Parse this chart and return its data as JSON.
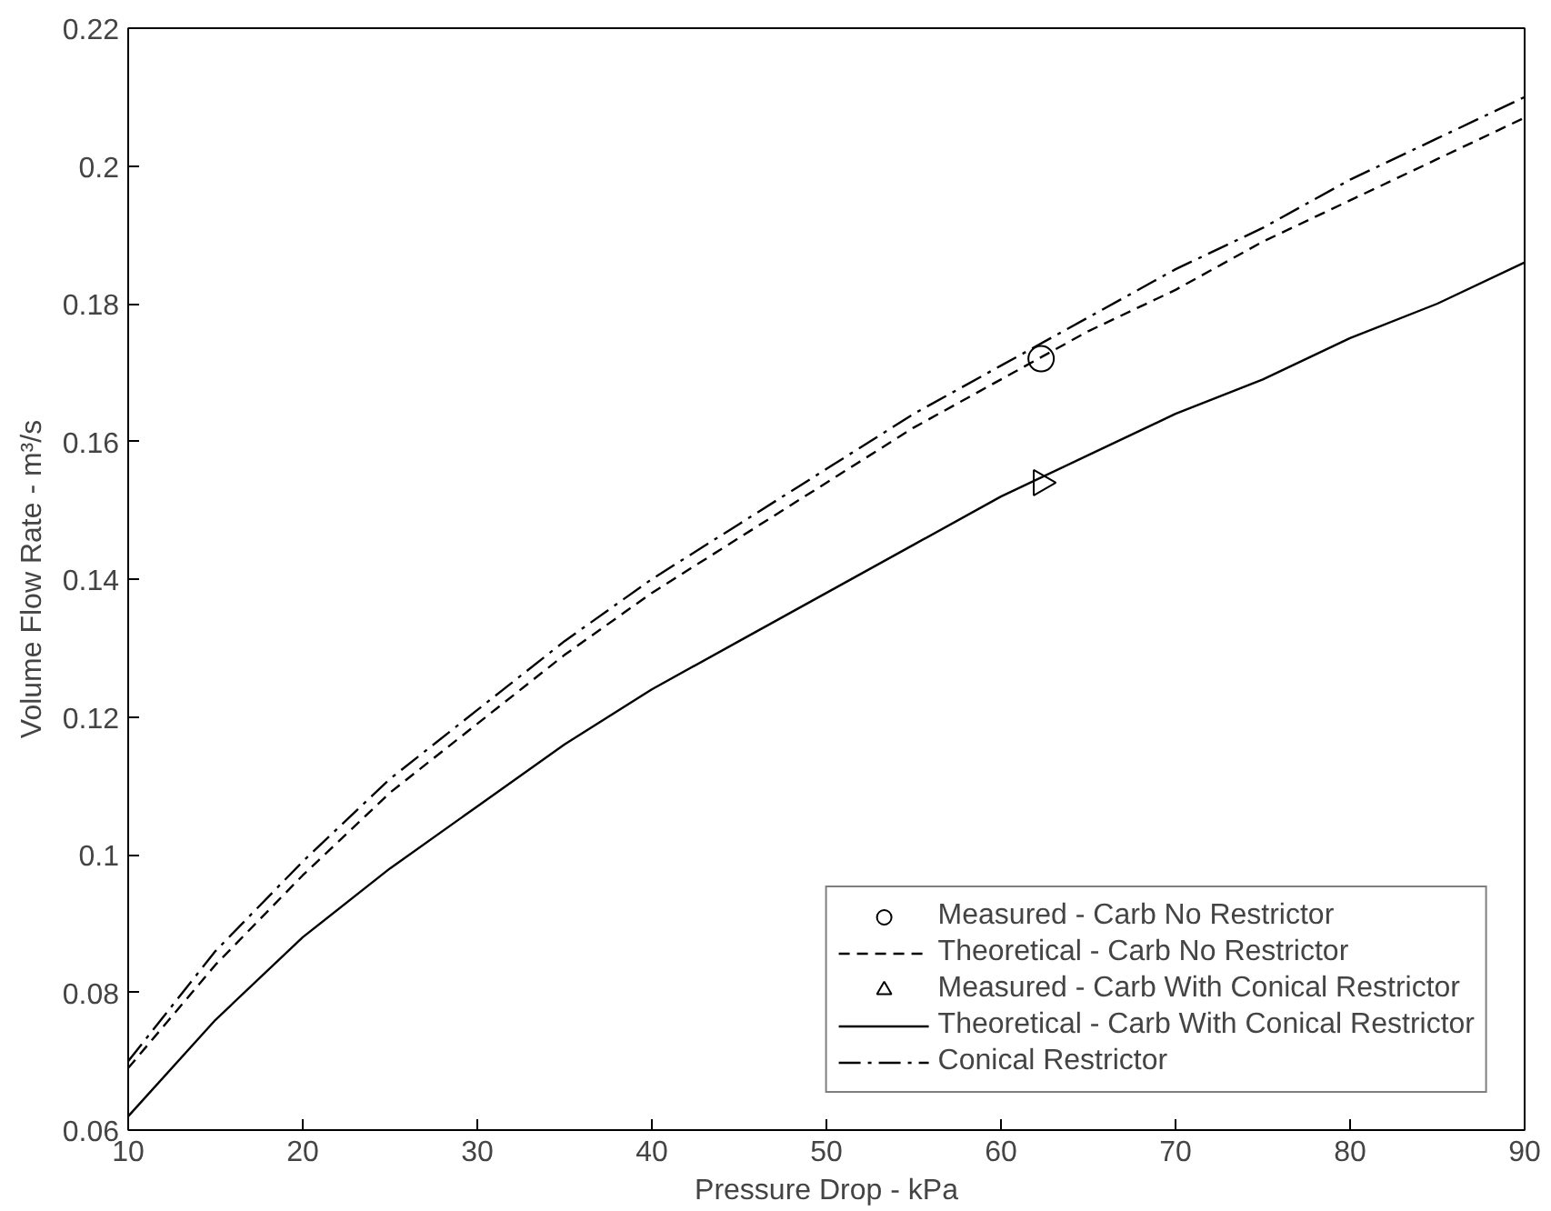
{
  "chart_data": {
    "type": "line",
    "xlabel": "Pressure Drop - kPa",
    "ylabel": "Volume Flow Rate - m³/s",
    "xlim": [
      10,
      90
    ],
    "ylim": [
      0.06,
      0.22
    ],
    "xticks": [
      10,
      20,
      30,
      40,
      50,
      60,
      70,
      80,
      90
    ],
    "yticks": [
      0.06,
      0.08,
      0.1,
      0.12,
      0.14,
      0.16,
      0.18,
      0.2,
      0.22
    ],
    "grid": false,
    "legend": "bottom right",
    "series": [
      {
        "name": "Measured - Carb No Restrictor",
        "type": "scatter",
        "marker": "circle",
        "color": "#000000",
        "x": [
          62.3
        ],
        "values": [
          0.172
        ]
      },
      {
        "name": "Theoretical - Carb No Restrictor",
        "line_style": "dashed",
        "color": "#000000",
        "x": [
          10,
          15,
          20,
          25,
          30,
          35,
          40,
          45,
          50,
          55,
          60,
          65,
          70,
          75,
          80,
          85,
          90
        ],
        "values": [
          0.069,
          0.084,
          0.097,
          0.109,
          0.119,
          0.129,
          0.138,
          0.146,
          0.154,
          0.162,
          0.169,
          0.176,
          0.182,
          0.189,
          0.195,
          0.201,
          0.207
        ]
      },
      {
        "name": "Measured - Carb With Conical Restrictor",
        "type": "scatter",
        "marker": "triangle",
        "color": "#000000",
        "x": [
          62.3
        ],
        "values": [
          0.154
        ]
      },
      {
        "name": "Theoretical - Carb With Conical Restrictor",
        "line_style": "solid",
        "color": "#000000",
        "x": [
          10,
          15,
          20,
          25,
          30,
          35,
          40,
          45,
          50,
          55,
          60,
          65,
          70,
          75,
          80,
          85,
          90
        ],
        "values": [
          0.062,
          0.076,
          0.088,
          0.098,
          0.107,
          0.116,
          0.124,
          0.131,
          0.138,
          0.145,
          0.152,
          0.158,
          0.164,
          0.169,
          0.175,
          0.18,
          0.186
        ]
      },
      {
        "name": "Conical Restrictor",
        "line_style": "dashdot",
        "color": "#000000",
        "x": [
          10,
          15,
          20,
          25,
          30,
          35,
          40,
          45,
          50,
          55,
          60,
          65,
          70,
          75,
          80,
          85,
          90
        ],
        "values": [
          0.07,
          0.086,
          0.099,
          0.111,
          0.121,
          0.131,
          0.14,
          0.148,
          0.156,
          0.164,
          0.171,
          0.178,
          0.185,
          0.191,
          0.198,
          0.204,
          0.21
        ]
      }
    ]
  }
}
